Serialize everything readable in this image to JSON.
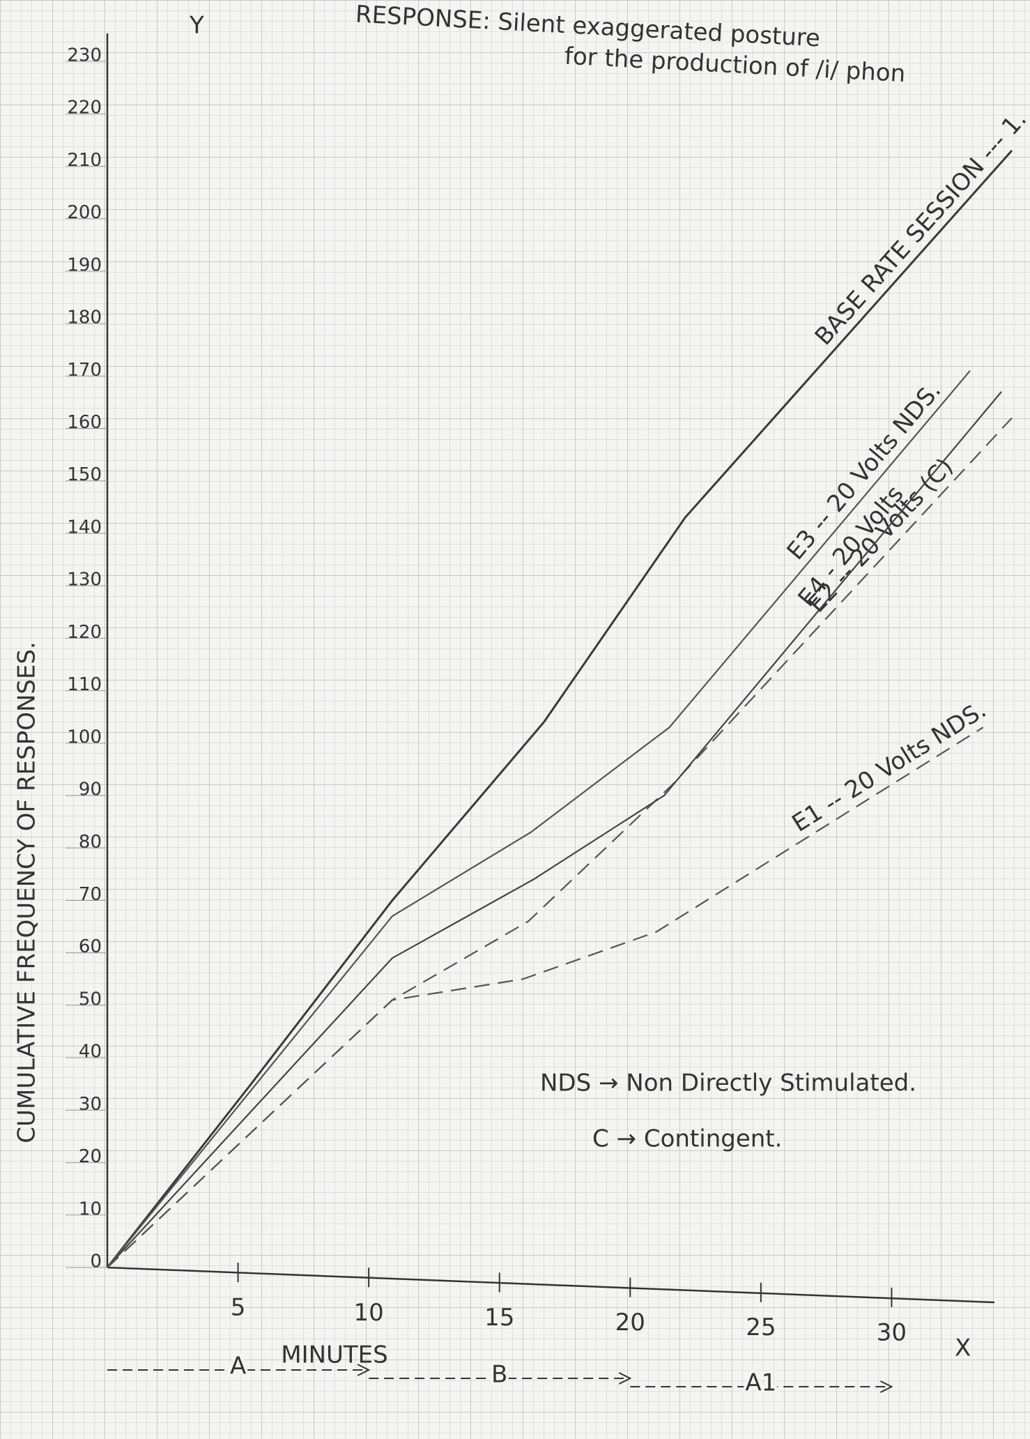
{
  "chart_data": {
    "type": "line",
    "title": "RESPONSE: Silent exaggerated posture",
    "subtitle": "for the production of /i/ phon",
    "x_label": "MINUTES",
    "y_label": "CUMULATIVE FREQUENCY OF RESPONSES.",
    "x_axis_letter": "X",
    "y_axis_letter": "Y",
    "xlim": [
      0,
      35
    ],
    "ylim": [
      0,
      230
    ],
    "xticks": [
      5,
      10,
      15,
      20,
      25,
      30
    ],
    "yticks": [
      0,
      10,
      20,
      30,
      40,
      50,
      60,
      70,
      80,
      90,
      100,
      110,
      120,
      130,
      140,
      150,
      160,
      170,
      180,
      190,
      200,
      210,
      220,
      230
    ],
    "grid": true,
    "series": [
      {
        "name": "BASE RATE SESSION --- 1.",
        "color": "#3a3a3a",
        "dashed": false,
        "x": [
          0,
          5.5,
          10.9,
          16.7,
          22.1,
          34.6
        ],
        "values": [
          0,
          35,
          70,
          104,
          143,
          213
        ]
      },
      {
        "name": "E3 -- 20 Volts NDS.",
        "color": "#555555",
        "dashed": false,
        "x": [
          0,
          10.9,
          16.2,
          21.5,
          33
        ],
        "values": [
          0,
          67,
          83,
          103,
          171
        ]
      },
      {
        "name": "E2 -- 20 Volts (C)",
        "color": "#555555",
        "dashed": true,
        "x": [
          0,
          10.9,
          16.1,
          21.6,
          34.6
        ],
        "values": [
          0,
          51,
          66,
          92,
          162
        ]
      },
      {
        "name": "E4 - 20 Volts",
        "color": "#444444",
        "dashed": false,
        "x": [
          0,
          10.9,
          16.3,
          21.3,
          34.2
        ],
        "values": [
          0,
          59,
          74,
          90,
          167
        ]
      },
      {
        "name": "E1 -- 20 Volts NDS.",
        "color": "#555555",
        "dashed": true,
        "x": [
          0,
          10.9,
          15.9,
          21,
          33.5
        ],
        "values": [
          0,
          51,
          55,
          64,
          103
        ]
      }
    ],
    "phases": [
      {
        "label": "A",
        "start": 0,
        "end": 10
      },
      {
        "label": "B",
        "start": 10,
        "end": 20
      },
      {
        "label": "A1",
        "start": 20,
        "end": 30
      }
    ],
    "notes": [
      "NDS → Non Directly Stimulated.",
      "C → Contingent."
    ]
  }
}
